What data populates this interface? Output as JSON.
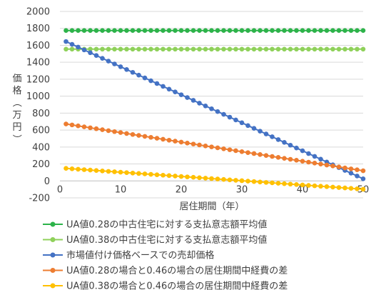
{
  "chart_data": {
    "type": "line",
    "xlabel": "居住期間（年）",
    "ylabel": "価格（万円）",
    "xlim": [
      0,
      50
    ],
    "ylim": [
      -200,
      2000
    ],
    "xticks": [
      0,
      10,
      20,
      30,
      40,
      50
    ],
    "yticks": [
      -200,
      0,
      200,
      400,
      600,
      800,
      1000,
      1200,
      1400,
      1600,
      1800,
      2000
    ],
    "grid": "horizontal",
    "legend": "bottom",
    "x_start": 1,
    "x_end": 50,
    "series": [
      {
        "name": "UA値0.28の中古住宅に対する支払意志額平均値",
        "color": "#2db34a",
        "start": 1775,
        "end": 1775
      },
      {
        "name": "UA値0.38の中古住宅に対する支払意志額平均値",
        "color": "#8fd15a",
        "start": 1555,
        "end": 1555
      },
      {
        "name": "市場値付け価格ベースでの売却価格",
        "color": "#4472c4",
        "start": 1645,
        "end": 25
      },
      {
        "name": "UA値0.28の場合と0.46の場合の居住期間中経費の差",
        "color": "#ed7d31",
        "start": 672,
        "end": 120
      },
      {
        "name": "UA値0.38の場合と0.46の場合の居住期間中経費の差",
        "color": "#ffc000",
        "start": 148,
        "end": -98
      }
    ]
  }
}
